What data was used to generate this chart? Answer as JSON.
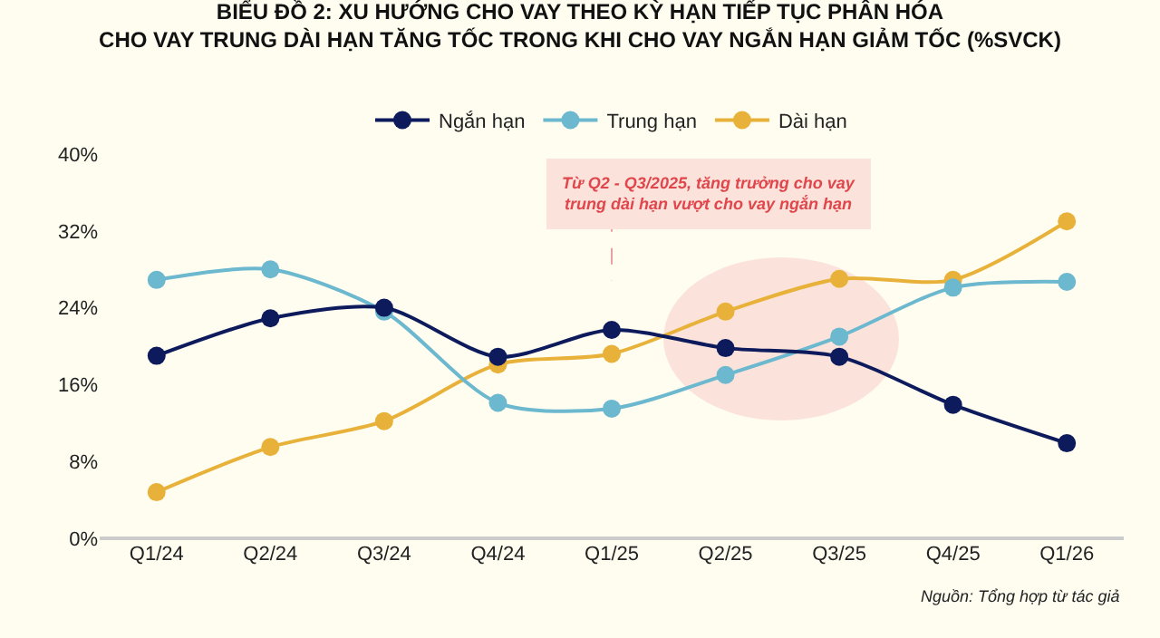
{
  "chart_data": {
    "type": "line",
    "title": "BIỂU ĐỒ 2: XU HƯỚNG CHO VAY THEO KỲ HẠN TIẾP TỤC PHÂN HÓA\nCHO VAY TRUNG DÀI HẠN TĂNG TỐC TRONG KHI CHO VAY NGẮN HẠN GIẢM TỐC (%SVCK)",
    "categories": [
      "Q1/24",
      "Q2/24",
      "Q3/24",
      "Q4/24",
      "Q1/25",
      "Q2/25",
      "Q3/25",
      "Q4/25",
      "Q1/26"
    ],
    "series": [
      {
        "name": "Ngắn hạn",
        "color": "#0d1b5c",
        "values": [
          19.0,
          22.9,
          24.0,
          18.9,
          21.7,
          19.8,
          18.9,
          13.9,
          9.9
        ]
      },
      {
        "name": "Trung hạn",
        "color": "#6bb8cf",
        "values": [
          26.9,
          28.0,
          23.6,
          14.1,
          13.5,
          17.0,
          21.0,
          26.1,
          26.7
        ]
      },
      {
        "name": "Dài hạn",
        "color": "#e8b23a",
        "values": [
          4.8,
          9.5,
          12.2,
          18.1,
          19.2,
          23.6,
          27.0,
          26.9,
          33.0
        ]
      }
    ],
    "ylim": [
      0,
      40
    ],
    "yticks": [
      {
        "value": 0,
        "label": "0%"
      },
      {
        "value": 8,
        "label": "8%"
      },
      {
        "value": 16,
        "label": "16%"
      },
      {
        "value": 24,
        "label": "24%"
      },
      {
        "value": 32,
        "label": "32%"
      },
      {
        "value": 40,
        "label": "40%"
      }
    ],
    "grid": false,
    "legend": "top",
    "marker": "circle",
    "line_style": "solid",
    "annotations": [
      "Từ Q2 - Q3/2025, tăng trưởng cho vay\ntrung dài hạn vượt cho vay ngắn hạn",
      "Nguồn: Tổng hợp từ tác giả"
    ]
  }
}
